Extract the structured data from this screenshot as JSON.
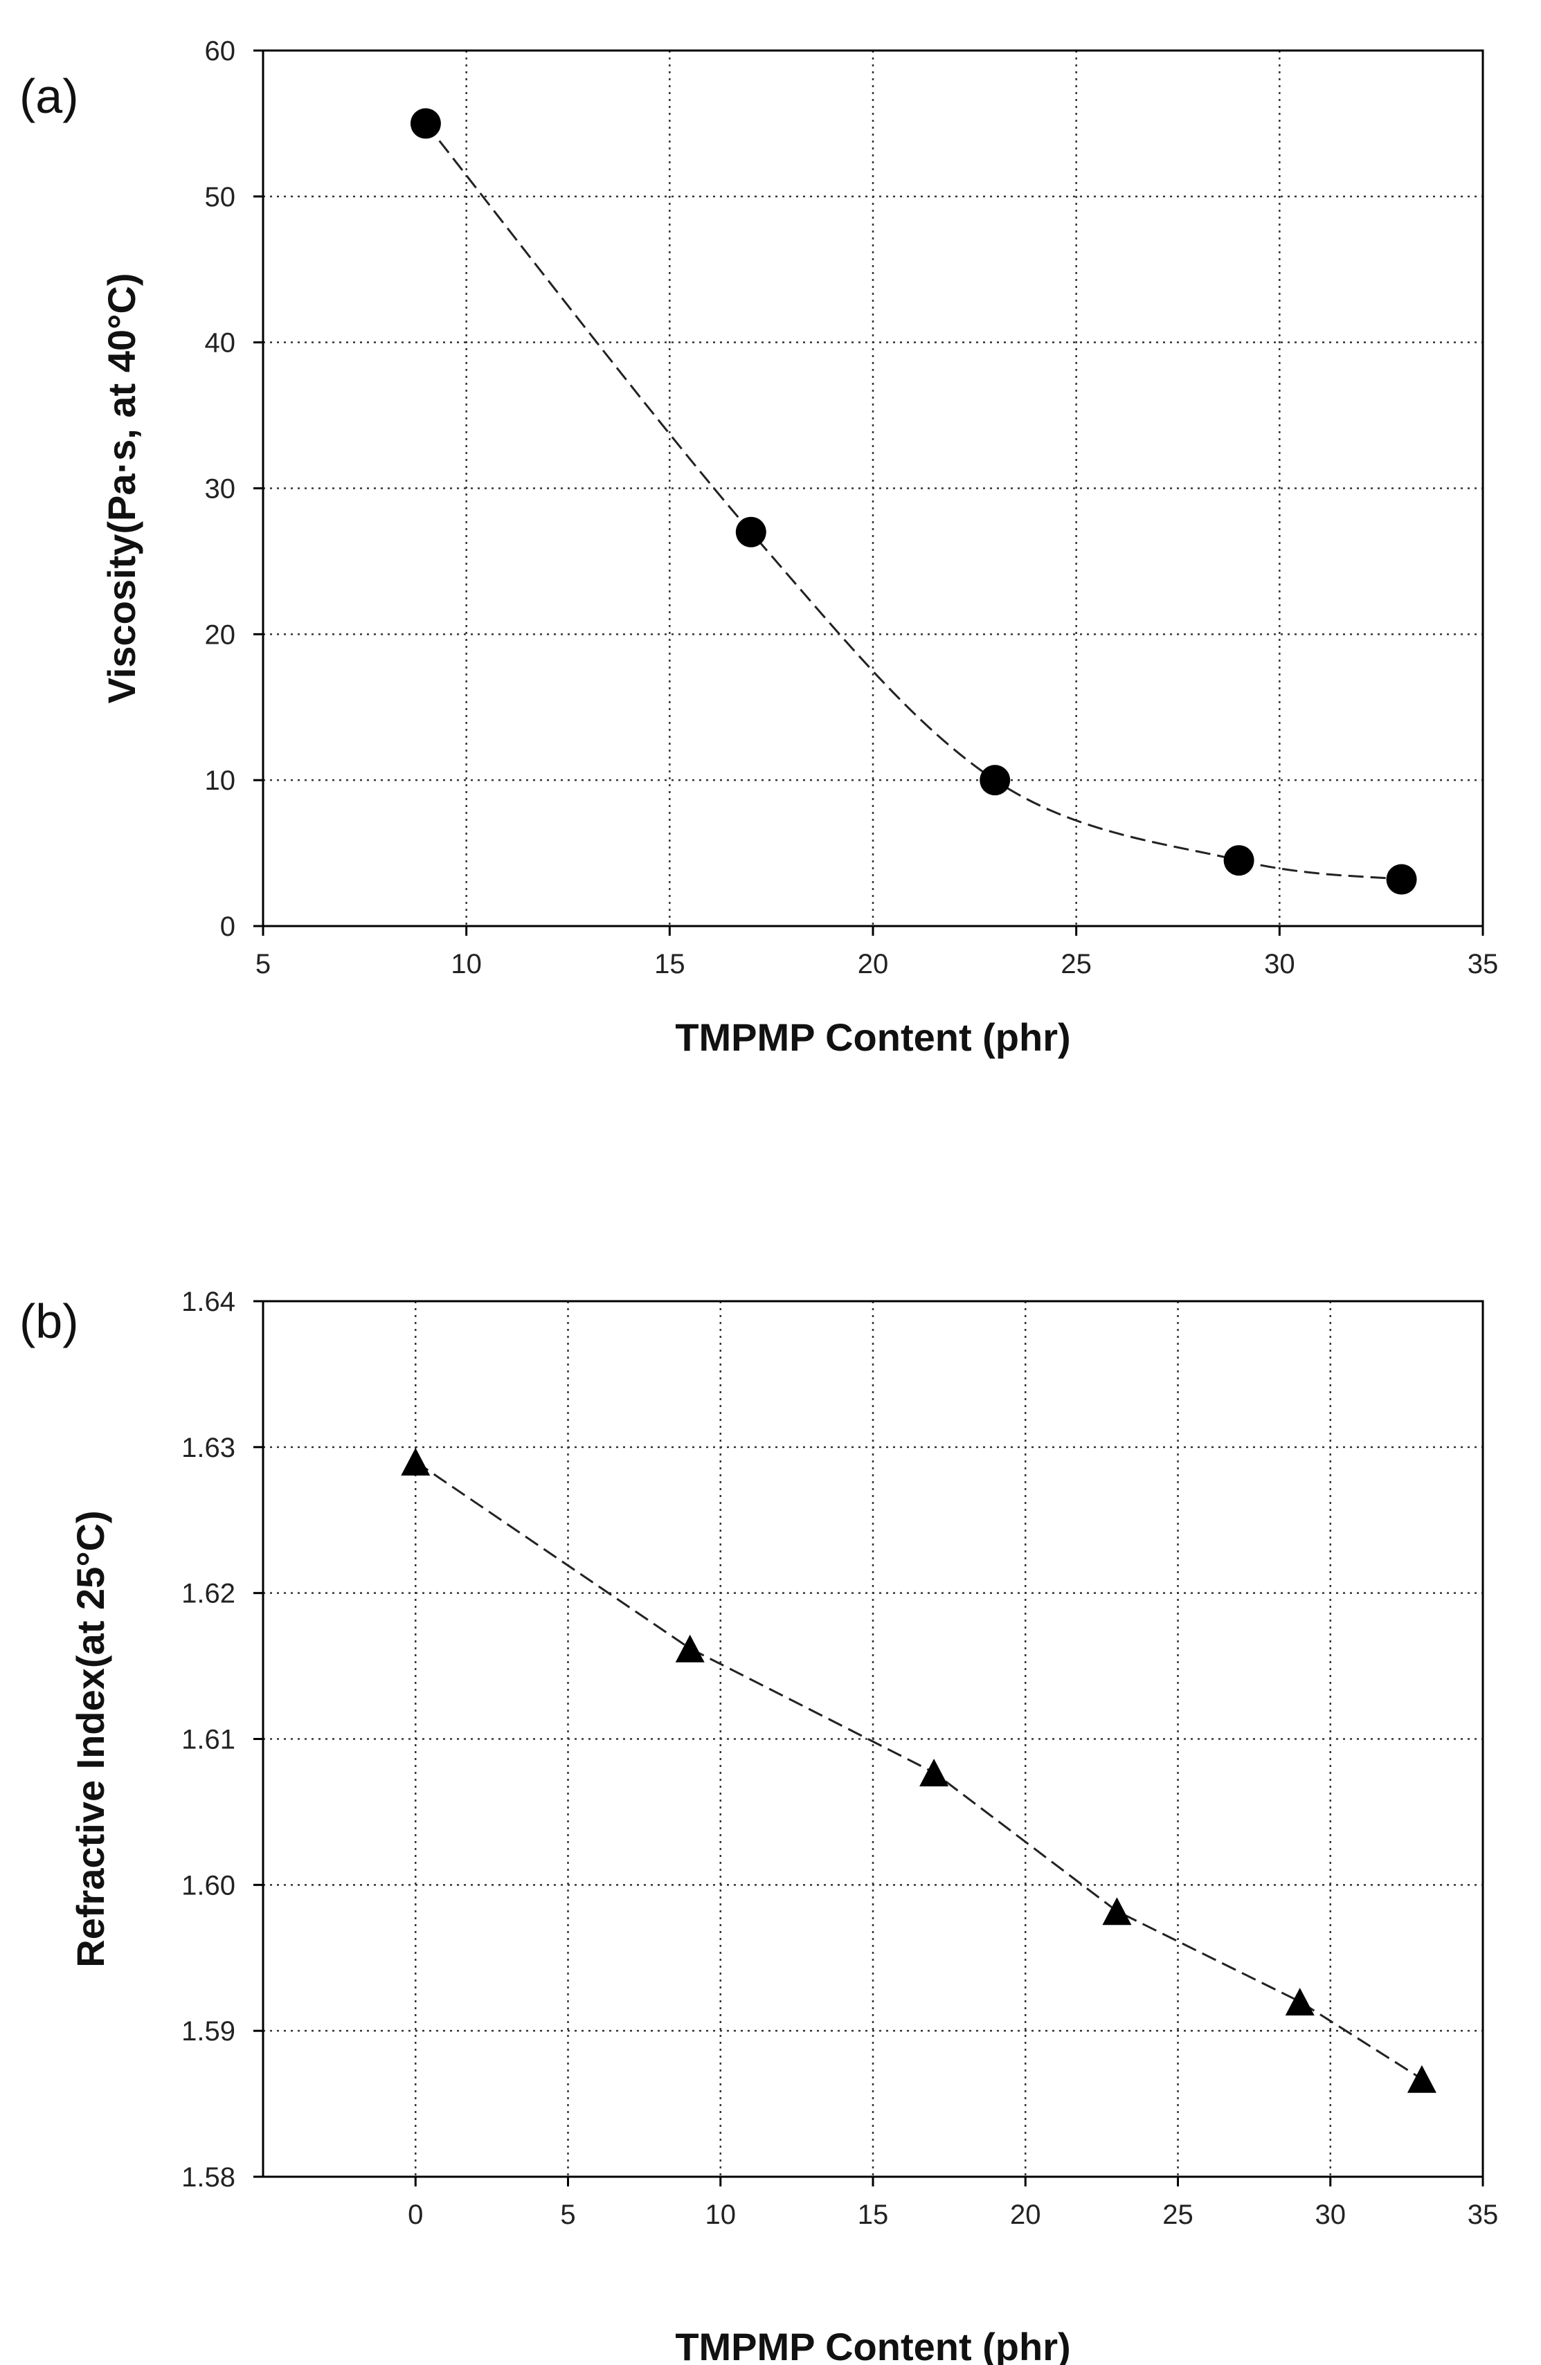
{
  "chart_data": [
    {
      "type": "scatter",
      "panel_label": "(a)",
      "xlabel": "TMPMP Content (phr)",
      "ylabel": "Viscosity(Pa·s, at 40°C)",
      "xlim": [
        5,
        35
      ],
      "ylim": [
        0,
        60
      ],
      "xticks": [
        5,
        10,
        15,
        20,
        25,
        30,
        35
      ],
      "yticks": [
        0,
        10,
        20,
        30,
        40,
        50,
        60
      ],
      "grid": true,
      "marker": "circle",
      "fit_line": "dashed",
      "series": [
        {
          "x": [
            9,
            17,
            23,
            29,
            33
          ],
          "y": [
            55,
            27,
            10,
            4.5,
            3.2
          ]
        }
      ]
    },
    {
      "type": "scatter",
      "panel_label": "(b)",
      "xlabel": "TMPMP Content (phr)",
      "ylabel": "Refractive Index(at 25°C)",
      "xlim": [
        -5,
        35
      ],
      "ylim": [
        1.58,
        1.64
      ],
      "xticks": [
        0,
        5,
        10,
        15,
        20,
        25,
        30,
        35
      ],
      "yticks": [
        1.58,
        1.59,
        1.6,
        1.61,
        1.62,
        1.63,
        1.64
      ],
      "ytick_labels": [
        "1.58",
        "1.59",
        "1.60",
        "1.61",
        "1.62",
        "1.63",
        "1.64"
      ],
      "grid": true,
      "marker": "triangle",
      "fit_line": "dashed",
      "series": [
        {
          "x": [
            0,
            9,
            17,
            23,
            29,
            33
          ],
          "y": [
            1.629,
            1.6162,
            1.6077,
            1.5982,
            1.592,
            1.5867
          ]
        }
      ]
    }
  ]
}
